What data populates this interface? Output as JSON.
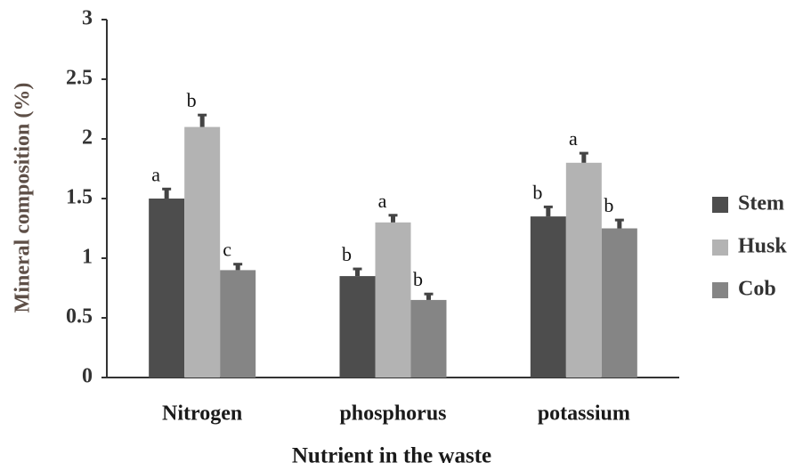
{
  "chart_data": {
    "type": "bar",
    "x_label": "Nutrient in the waste",
    "y_label": "Mineral composition (%)",
    "categories": [
      "Nitrogen",
      "phosphorus",
      "potassium"
    ],
    "series": [
      {
        "name": "Stem",
        "color": "#4d4d4d",
        "values": [
          1.5,
          0.85,
          1.35
        ],
        "errors": [
          0.08,
          0.06,
          0.08
        ],
        "significance_labels": [
          "a",
          "b",
          "b"
        ]
      },
      {
        "name": "Husk",
        "color": "#b3b3b3",
        "values": [
          2.1,
          1.3,
          1.8
        ],
        "errors": [
          0.1,
          0.06,
          0.08
        ],
        "significance_labels": [
          "b",
          "a",
          "a"
        ]
      },
      {
        "name": "Cob",
        "color": "#858585",
        "values": [
          0.9,
          0.65,
          1.25
        ],
        "errors": [
          0.05,
          0.05,
          0.07
        ],
        "significance_labels": [
          "c",
          "b",
          "b"
        ]
      }
    ],
    "ylim": [
      0,
      3
    ],
    "yticks": [
      0,
      0.5,
      1,
      1.5,
      2,
      2.5,
      3
    ],
    "legend": "right"
  }
}
